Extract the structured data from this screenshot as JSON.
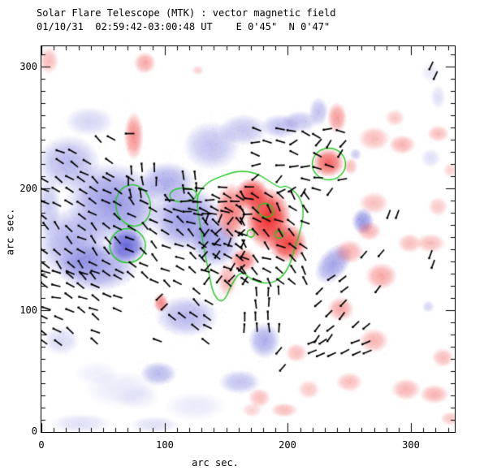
{
  "header": {
    "title": "Solar Flare Telescope (MTK) : vector magnetic field",
    "subtitle": "01/10/31  02:59:42-03:00:48 UT    E 0'45\"  N 0'47\""
  },
  "axes": {
    "x_label": "arc sec.",
    "y_label": "arc sec.",
    "x_ticks": [
      "0",
      "100",
      "200",
      "300"
    ],
    "y_ticks": [
      "0",
      "100",
      "200",
      "300"
    ]
  },
  "colors": {
    "background": "#ffffff",
    "frame": "#000000",
    "text": "#000000"
  },
  "chart_data": {
    "type": "heatmap",
    "title": "Solar Flare Telescope (MTK) : vector magnetic field",
    "subtitle": "01/10/31  02:59:42-03:00:48 UT    E 0'45\"  N 0'47\"",
    "xlabel": "arc sec.",
    "ylabel": "arc sec.",
    "x_range": [
      0,
      335.6
    ],
    "y_range": [
      0,
      316.7
    ],
    "major_tick_step": 100,
    "minor_tick_step": 10,
    "polarity_colors": {
      "positive": "#ee2222",
      "negative": "#3333cc"
    },
    "contour_color": "#22c822",
    "vector_color": "#000000",
    "seed": 7,
    "vector_length": 7,
    "blobs": [
      [
        39,
        255,
        20,
        12,
        0,
        "n",
        0.2
      ],
      [
        22,
        221,
        26,
        23,
        0,
        "n",
        0.35
      ],
      [
        59,
        188,
        40,
        33,
        -15,
        "n",
        0.5
      ],
      [
        69,
        153,
        16,
        15,
        0,
        "n",
        0.75
      ],
      [
        45,
        135,
        33,
        20,
        0,
        "n",
        0.45
      ],
      [
        26,
        155,
        30,
        30,
        0,
        "n",
        0.4
      ],
      [
        118,
        175,
        30,
        27,
        0,
        "n",
        0.5
      ],
      [
        141,
        155,
        20,
        20,
        0,
        "n",
        0.45
      ],
      [
        102,
        205,
        23,
        17,
        0,
        "n",
        0.4
      ],
      [
        138,
        235,
        23,
        20,
        0,
        "n",
        0.3
      ],
      [
        164,
        248,
        20,
        13,
        0,
        "n",
        0.28
      ],
      [
        194,
        251,
        16,
        10,
        0,
        "n",
        0.3
      ],
      [
        210,
        255,
        15,
        9,
        0,
        "n",
        0.28
      ],
      [
        225,
        263,
        8,
        12,
        0,
        "n",
        0.3
      ],
      [
        118,
        95,
        26,
        17,
        0,
        "n",
        0.35
      ],
      [
        95,
        48,
        15,
        10,
        0,
        "n",
        0.35
      ],
      [
        161,
        41,
        17,
        10,
        0,
        "n",
        0.3
      ],
      [
        237,
        138,
        12,
        19,
        -40,
        "n",
        0.45
      ],
      [
        181,
        75,
        13,
        15,
        0,
        "n",
        0.4
      ],
      [
        261,
        173,
        9,
        11,
        0,
        "n",
        0.5
      ],
      [
        316,
        225,
        8,
        8,
        0,
        "n",
        0.15
      ],
      [
        314,
        103,
        5,
        5,
        0,
        "n",
        0.2
      ],
      [
        255,
        228,
        5,
        5,
        0,
        "n",
        0.25
      ],
      [
        322,
        275,
        6,
        10,
        0,
        "n",
        0.15
      ],
      [
        316,
        295,
        8,
        8,
        0,
        "n",
        0.1
      ],
      [
        65,
        35,
        30,
        15,
        0,
        "n",
        0.1
      ],
      [
        125,
        21,
        25,
        12,
        0,
        "n",
        0.1
      ],
      [
        32,
        7,
        25,
        8,
        0,
        "n",
        0.15
      ],
      [
        92,
        6,
        20,
        7,
        0,
        "n",
        0.15
      ],
      [
        6,
        185,
        10,
        25,
        0,
        "n",
        0.25
      ],
      [
        16,
        75,
        15,
        12,
        0,
        "n",
        0.18
      ],
      [
        45,
        48,
        18,
        10,
        0,
        "n",
        0.08
      ],
      [
        78,
        28,
        18,
        10,
        0,
        "n",
        0.08
      ],
      [
        6,
        305,
        8,
        11,
        0,
        "p",
        0.3
      ],
      [
        84,
        303,
        9,
        9,
        0,
        "p",
        0.4
      ],
      [
        127,
        297,
        5,
        4,
        0,
        "p",
        0.2
      ],
      [
        75,
        243,
        8,
        20,
        0,
        "p",
        0.5
      ],
      [
        184,
        175,
        19,
        26,
        0,
        "p",
        0.95
      ],
      [
        171,
        195,
        14,
        14,
        0,
        "p",
        0.85
      ],
      [
        200,
        155,
        16,
        16,
        0,
        "p",
        0.85
      ],
      [
        154,
        181,
        13,
        24,
        0,
        "p",
        0.6
      ],
      [
        164,
        141,
        11,
        10,
        0,
        "p",
        0.6
      ],
      [
        151,
        125,
        8,
        14,
        0,
        "p",
        0.35
      ],
      [
        233,
        221,
        13,
        12,
        0,
        "p",
        0.7
      ],
      [
        240,
        258,
        8,
        13,
        0,
        "p",
        0.45
      ],
      [
        270,
        241,
        13,
        10,
        0,
        "p",
        0.3
      ],
      [
        293,
        236,
        11,
        8,
        0,
        "p",
        0.35
      ],
      [
        322,
        245,
        9,
        7,
        0,
        "p",
        0.3
      ],
      [
        287,
        258,
        8,
        7,
        0,
        "p",
        0.25
      ],
      [
        97,
        106,
        6,
        8,
        0,
        "p",
        0.55
      ],
      [
        250,
        148,
        12,
        10,
        0,
        "p",
        0.35
      ],
      [
        276,
        128,
        13,
        11,
        0,
        "p",
        0.4
      ],
      [
        299,
        155,
        10,
        8,
        0,
        "p",
        0.3
      ],
      [
        243,
        101,
        11,
        10,
        0,
        "p",
        0.4
      ],
      [
        270,
        75,
        12,
        10,
        0,
        "p",
        0.35
      ],
      [
        250,
        41,
        11,
        8,
        0,
        "p",
        0.3
      ],
      [
        296,
        35,
        12,
        9,
        0,
        "p",
        0.35
      ],
      [
        326,
        61,
        9,
        8,
        0,
        "p",
        0.3
      ],
      [
        217,
        35,
        9,
        8,
        0,
        "p",
        0.25
      ],
      [
        197,
        18,
        11,
        6,
        0,
        "p",
        0.3
      ],
      [
        319,
        31,
        12,
        8,
        0,
        "p",
        0.35
      ],
      [
        171,
        18,
        8,
        6,
        0,
        "p",
        0.2
      ],
      [
        332,
        215,
        6,
        6,
        0,
        "p",
        0.2
      ],
      [
        270,
        188,
        12,
        9,
        0,
        "p",
        0.3
      ],
      [
        266,
        165,
        10,
        8,
        0,
        "p",
        0.35
      ],
      [
        316,
        155,
        12,
        8,
        0,
        "p",
        0.3
      ],
      [
        177,
        28,
        9,
        8,
        0,
        "p",
        0.3
      ],
      [
        207,
        65,
        9,
        8,
        0,
        "p",
        0.3
      ],
      [
        332,
        11,
        8,
        6,
        0,
        "p",
        0.25
      ],
      [
        251,
        218,
        6,
        7,
        0,
        "p",
        0.3
      ],
      [
        322,
        185,
        8,
        8,
        0,
        "p",
        0.25
      ]
    ],
    "contour_ellipses": [
      [
        74.5,
        186,
        14,
        17,
        10
      ],
      [
        70,
        153,
        14.5,
        14,
        0
      ],
      [
        233.4,
        220,
        13.5,
        13,
        0
      ],
      [
        182,
        182,
        6.5,
        5.5,
        -20
      ],
      [
        170,
        163,
        3,
        3,
        0
      ],
      [
        193,
        162,
        3.5,
        3,
        0
      ]
    ],
    "contour_paths": [
      [
        [
          103.5,
          194.7
        ],
        [
          107.5,
          199.3
        ],
        [
          116.7,
          200.7
        ],
        [
          124.6,
          198.7
        ],
        [
          126.6,
          194.7
        ],
        [
          123.3,
          190.7
        ],
        [
          114.1,
          188.7
        ],
        [
          106.2,
          190
        ]
      ],
      [
        [
          126.6,
          194.7
        ],
        [
          132.5,
          202.7
        ],
        [
          139.1,
          207.3
        ],
        [
          149.7,
          211.3
        ],
        [
          160.9,
          214.7
        ],
        [
          174.1,
          212.7
        ],
        [
          184.0,
          206.7
        ],
        [
          193.9,
          200
        ],
        [
          198.5,
          202.7
        ],
        [
          207.7,
          196
        ],
        [
          213.0,
          184.7
        ],
        [
          211.6,
          169.3
        ],
        [
          206.4,
          153.3
        ],
        [
          201.7,
          136.7
        ],
        [
          194.5,
          126
        ],
        [
          184.0,
          121.3
        ],
        [
          170.8,
          124.7
        ],
        [
          162.2,
          132.7
        ],
        [
          154.3,
          121.3
        ],
        [
          149.7,
          109.3
        ],
        [
          144.4,
          106.7
        ],
        [
          139.1,
          114.7
        ],
        [
          136.5,
          128
        ],
        [
          132.5,
          148
        ],
        [
          129.2,
          168
        ],
        [
          126.6,
          184.7
        ]
      ]
    ],
    "vector_patches": [
      {
        "x0": 3,
        "x1": 92,
        "y0": 128,
        "y1": 211,
        "angle": -40,
        "jitter": 22,
        "p": 0.85,
        "spacing": 10
      },
      {
        "x0": 3,
        "x1": 69,
        "y0": 101,
        "y1": 131,
        "angle": -22,
        "jitter": 18,
        "p": 0.8,
        "spacing": 10
      },
      {
        "x0": 92,
        "x1": 168,
        "y0": 123,
        "y1": 196,
        "angle": -35,
        "jitter": 22,
        "p": 0.88,
        "spacing": 10
      },
      {
        "x0": 72,
        "x1": 98,
        "y0": 196,
        "y1": 218,
        "angle": -85,
        "jitter": 8,
        "p": 0.85,
        "spacing": 10
      },
      {
        "x0": 115,
        "x1": 132,
        "y0": 200,
        "y1": 215,
        "angle": -85,
        "jitter": 8,
        "p": 0.85,
        "spacing": 10
      },
      {
        "x0": 95,
        "x1": 141,
        "y0": 75,
        "y1": 123,
        "angle": -35,
        "jitter": 20,
        "p": 0.3,
        "spacing": 10
      },
      {
        "x0": 118,
        "x1": 172,
        "y0": 180,
        "y1": 202,
        "angle": -3,
        "jitter": 10,
        "p": 0.9,
        "spacing": 10
      },
      {
        "x0": 104,
        "x1": 136,
        "y0": 170,
        "y1": 193,
        "angle": -3,
        "jitter": 8,
        "p": 0.5,
        "spacing": 10
      },
      {
        "x0": 164,
        "x1": 215,
        "y0": 123,
        "y1": 202,
        "angle": -40,
        "jitter": 30,
        "p": 0.9,
        "spacing": 10
      },
      {
        "x0": 134,
        "x1": 165,
        "y0": 125,
        "y1": 178,
        "angle": 60,
        "jitter": 18,
        "p": 0.8,
        "spacing": 10
      },
      {
        "x0": 174,
        "x1": 251,
        "y0": 198,
        "y1": 248,
        "angle": 15,
        "jitter": 45,
        "p": 0.7,
        "spacing": 10
      },
      {
        "x0": 164,
        "x1": 198,
        "y0": 85,
        "y1": 122,
        "angle": -88,
        "jitter": 6,
        "p": 0.75,
        "spacing": 10
      },
      {
        "x0": 225,
        "x1": 254,
        "y0": 76,
        "y1": 129,
        "angle": 45,
        "jitter": 12,
        "p": 0.7,
        "spacing": 10
      },
      {
        "x0": 219,
        "x1": 271,
        "y0": 65,
        "y1": 79,
        "angle": 25,
        "jitter": 8,
        "p": 0.95,
        "spacing": 9
      },
      {
        "x0": 254,
        "x1": 281,
        "y0": 88,
        "y1": 125,
        "angle": 45,
        "jitter": 15,
        "p": 0.4,
        "spacing": 10
      },
      {
        "x0": 16,
        "x1": 65,
        "y0": 211,
        "y1": 255,
        "angle": -40,
        "jitter": 22,
        "p": 0.4,
        "spacing": 10
      },
      {
        "x0": 3,
        "x1": 45,
        "y0": 73,
        "y1": 101,
        "angle": -35,
        "jitter": 18,
        "p": 0.7,
        "spacing": 10
      }
    ],
    "vector_singles": [
      [
        72,
        245,
        0
      ],
      [
        96,
        111,
        45
      ],
      [
        100,
        103,
        45
      ],
      [
        193,
        67,
        50
      ],
      [
        196,
        53,
        50
      ],
      [
        282,
        179,
        70
      ],
      [
        289,
        179,
        70
      ],
      [
        262,
        146,
        50
      ],
      [
        276,
        147,
        50
      ],
      [
        316,
        146,
        70
      ],
      [
        318,
        138,
        70
      ],
      [
        316.5,
        301,
        65
      ],
      [
        320,
        293,
        65
      ],
      [
        215,
        245,
        -30
      ],
      [
        223.5,
        243,
        -30
      ]
    ]
  }
}
